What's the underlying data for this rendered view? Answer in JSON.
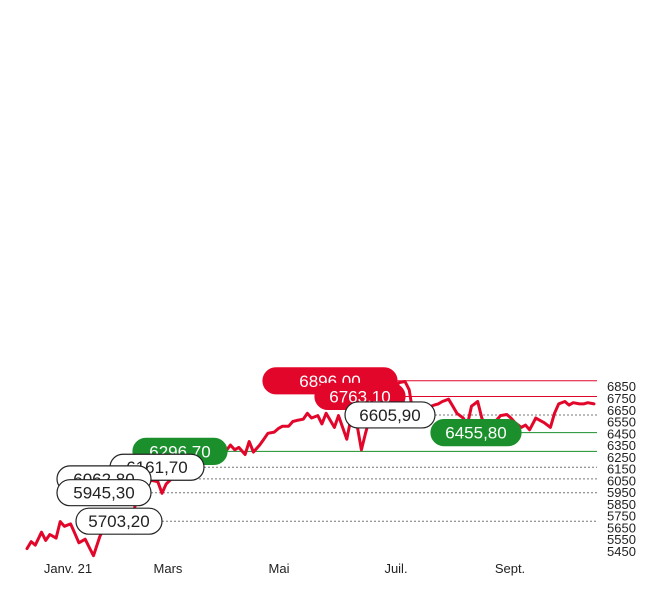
{
  "chart_data": {
    "type": "line",
    "title": "",
    "xlabel": "",
    "ylabel": "",
    "ylim": [
      5400,
      6920
    ],
    "y_ticks": [
      "6850",
      "6750",
      "6650",
      "6550",
      "6450",
      "6350",
      "6250",
      "6150",
      "6050",
      "5950",
      "5850",
      "5750",
      "5650",
      "5550",
      "5450"
    ],
    "x_ticks": [
      "Janv. 21",
      "Mars",
      "Mai",
      "Juil.",
      "Sept."
    ],
    "grid": false,
    "line_color": "#e3062b",
    "series": [
      {
        "name": "",
        "x": [
          "2021-01-04",
          "2021-01-06",
          "2021-01-08",
          "2021-01-11",
          "2021-01-13",
          "2021-01-15",
          "2021-01-18",
          "2021-01-20",
          "2021-01-22",
          "2021-01-25",
          "2021-01-27",
          "2021-01-29",
          "2021-02-01",
          "2021-02-03",
          "2021-02-05",
          "2021-02-08",
          "2021-02-10",
          "2021-02-12",
          "2021-02-15",
          "2021-02-17",
          "2021-02-19",
          "2021-02-22",
          "2021-02-24",
          "2021-02-26",
          "2021-03-01",
          "2021-03-03",
          "2021-03-05",
          "2021-03-08",
          "2021-03-10",
          "2021-03-12",
          "2021-03-15",
          "2021-03-17",
          "2021-03-19",
          "2021-03-22",
          "2021-03-24",
          "2021-03-26",
          "2021-03-29",
          "2021-03-31",
          "2021-04-02",
          "2021-04-06",
          "2021-04-08",
          "2021-04-12",
          "2021-04-14",
          "2021-04-16",
          "2021-04-19",
          "2021-04-21",
          "2021-04-23",
          "2021-04-26",
          "2021-04-28",
          "2021-04-30",
          "2021-05-03",
          "2021-05-05",
          "2021-05-07",
          "2021-05-10",
          "2021-05-12",
          "2021-05-14",
          "2021-05-17",
          "2021-05-19",
          "2021-05-21",
          "2021-05-24",
          "2021-05-26",
          "2021-05-28",
          "2021-06-01",
          "2021-06-03",
          "2021-06-07",
          "2021-06-09",
          "2021-06-11",
          "2021-06-14",
          "2021-06-16",
          "2021-06-18",
          "2021-06-21",
          "2021-06-23",
          "2021-06-25",
          "2021-06-28",
          "2021-06-30",
          "2021-07-02",
          "2021-07-05",
          "2021-07-07",
          "2021-07-09",
          "2021-07-12",
          "2021-07-14",
          "2021-07-16",
          "2021-07-19",
          "2021-07-21",
          "2021-07-23",
          "2021-07-26",
          "2021-07-28",
          "2021-07-30",
          "2021-08-02",
          "2021-08-04",
          "2021-08-06",
          "2021-08-09",
          "2021-08-11",
          "2021-08-13",
          "2021-08-16",
          "2021-08-18",
          "2021-08-20",
          "2021-08-23",
          "2021-08-25",
          "2021-08-27",
          "2021-08-30",
          "2021-09-01",
          "2021-09-03",
          "2021-09-06",
          "2021-09-08",
          "2021-09-10",
          "2021-09-13",
          "2021-09-15",
          "2021-09-17",
          "2021-09-20",
          "2021-09-22",
          "2021-09-24",
          "2021-09-27",
          "2021-09-29",
          "2021-10-01",
          "2021-10-04"
        ],
        "values": [
          5470,
          5530,
          5500,
          5610,
          5540,
          5590,
          5560,
          5700,
          5660,
          5680,
          5600,
          5520,
          5550,
          5480,
          5410,
          5570,
          5650,
          5720,
          5740,
          5800,
          5780,
          5800,
          5760,
          5900,
          5950,
          6030,
          6050,
          6040,
          5940,
          6020,
          6070,
          6100,
          6120,
          6150,
          6190,
          6200,
          6220,
          6230,
          6270,
          6310,
          6260,
          6350,
          6310,
          6330,
          6270,
          6380,
          6290,
          6350,
          6400,
          6450,
          6460,
          6490,
          6510,
          6510,
          6550,
          6560,
          6570,
          6620,
          6580,
          6600,
          6530,
          6620,
          6500,
          6600,
          6400,
          6580,
          6610,
          6310,
          6450,
          6580,
          6620,
          6650,
          6700,
          6780,
          6820,
          6880,
          6890,
          6820,
          6600,
          6660,
          6680,
          6670,
          6690,
          6700,
          6720,
          6740,
          6680,
          6620,
          6580,
          6520,
          6680,
          6720,
          6580,
          6500,
          6460,
          6560,
          6600,
          6610,
          6580,
          6540,
          6500,
          6520,
          6480,
          6580,
          6560,
          6540,
          6500,
          6620,
          6700,
          6720,
          6690,
          6710,
          6700,
          6700,
          6710,
          6700
        ]
      }
    ],
    "levels": [
      {
        "label": "6896,00",
        "value": 6896.0,
        "style": "red"
      },
      {
        "label": "6763,10",
        "value": 6763.1,
        "style": "red"
      },
      {
        "label": "6605,90",
        "value": 6605.9,
        "style": "white"
      },
      {
        "label": "6455,80",
        "value": 6455.8,
        "style": "green"
      },
      {
        "label": "6296,70",
        "value": 6296.7,
        "style": "green"
      },
      {
        "label": "6161,70",
        "value": 6161.7,
        "style": "white"
      },
      {
        "label": "6062,80",
        "value": 6062.8,
        "style": "white"
      },
      {
        "label": "5945,30",
        "value": 5945.3,
        "style": "white"
      },
      {
        "label": "5703,20",
        "value": 5703.2,
        "style": "white"
      }
    ],
    "colors": {
      "red": "#e3062b",
      "green": "#1a8f2c",
      "white": "#ffffff",
      "text_dark": "#222222"
    }
  }
}
